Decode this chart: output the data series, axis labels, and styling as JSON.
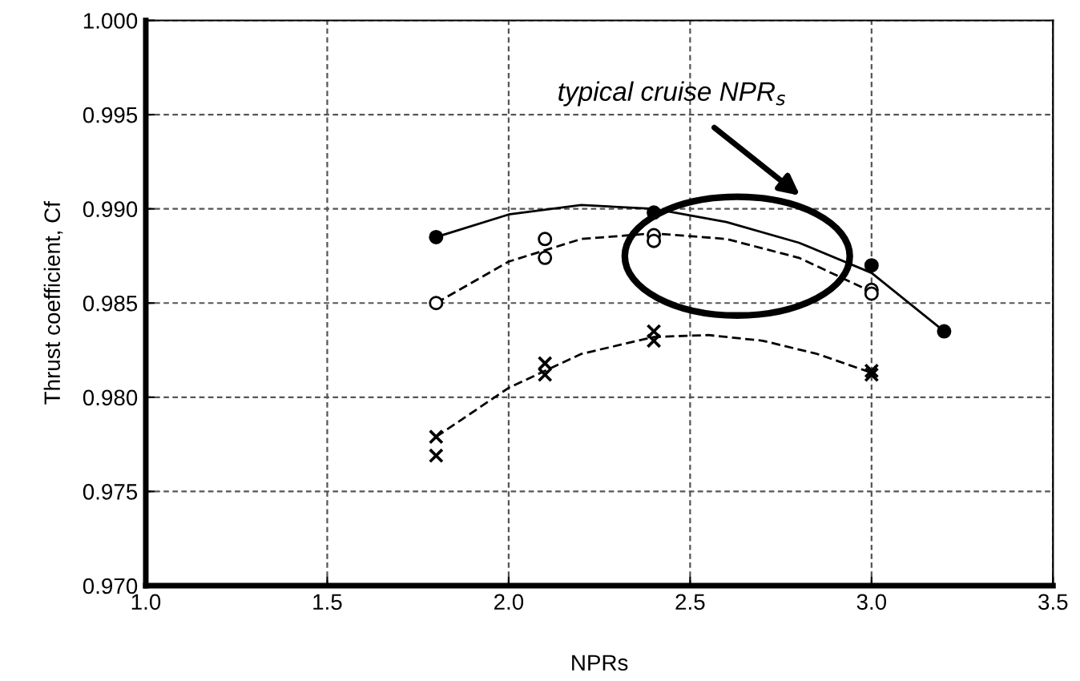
{
  "chart_data": {
    "type": "scatter",
    "xlabel": "NPRs",
    "ylabel": "Thrust coefficient, Cf",
    "xlim": [
      1.0,
      3.5
    ],
    "xticks": [
      {
        "value": 1.0,
        "label": "1.0"
      },
      {
        "value": 1.5,
        "label": "1.5"
      },
      {
        "value": 2.0,
        "label": "2.0"
      },
      {
        "value": 2.5,
        "label": "2.5"
      },
      {
        "value": 3.0,
        "label": "3.0"
      },
      {
        "value": 3.5,
        "label": "3.5"
      }
    ],
    "ylim": [
      0.97,
      1.0
    ],
    "yticks": [
      {
        "value": 0.97,
        "label": "0.970"
      },
      {
        "value": 0.975,
        "label": "0.975"
      },
      {
        "value": 0.98,
        "label": "0.980"
      },
      {
        "value": 0.985,
        "label": "0.985"
      },
      {
        "value": 0.99,
        "label": "0.990"
      },
      {
        "value": 0.995,
        "label": "0.995"
      },
      {
        "value": 1.0,
        "label": "1.000"
      }
    ],
    "grid": true,
    "legend": false,
    "annotations": [
      "typical cruise NPR$_{s}$"
    ],
    "series": [
      {
        "marker": "circle",
        "color": "#000000",
        "x": [
          1.8,
          2.4,
          3.0,
          3.2
        ],
        "values": [
          0.9885,
          0.9898,
          0.987,
          0.9835
        ]
      },
      {
        "marker": "circle",
        "color": "#ffffff",
        "x": [
          1.8,
          2.1,
          2.1,
          2.4,
          2.4,
          3.0,
          3.0
        ],
        "values": [
          0.985,
          0.9884,
          0.9874,
          0.9886,
          0.9883,
          0.9857,
          0.9855
        ]
      },
      {
        "marker": "cross",
        "color": "#000000",
        "x": [
          1.8,
          1.8,
          2.1,
          2.1,
          2.4,
          2.4,
          3.0,
          3.0
        ],
        "values": [
          0.9779,
          0.9769,
          0.9818,
          0.9812,
          0.9835,
          0.983,
          0.9814,
          0.9812
        ]
      },
      {
        "type": "line",
        "line_style": "solid",
        "color": "#000000",
        "x": [
          1.8,
          2.0,
          2.2,
          2.4,
          2.6,
          2.8,
          3.0,
          3.2
        ],
        "values": [
          0.9885,
          0.9897,
          0.9902,
          0.99,
          0.9893,
          0.9882,
          0.9866,
          0.9835
        ]
      },
      {
        "type": "line",
        "line_style": "dashed",
        "color": "#000000",
        "x": [
          1.8,
          2.0,
          2.2,
          2.4,
          2.6,
          2.8,
          3.0
        ],
        "values": [
          0.985,
          0.9872,
          0.9884,
          0.9887,
          0.9884,
          0.9874,
          0.9856
        ]
      },
      {
        "type": "line",
        "line_style": "dashed",
        "color": "#000000",
        "x": [
          1.8,
          2.0,
          2.2,
          2.4,
          2.55,
          2.7,
          2.85,
          3.0
        ],
        "values": [
          0.9779,
          0.9805,
          0.9823,
          0.9832,
          0.9833,
          0.983,
          0.9823,
          0.9813
        ]
      }
    ]
  }
}
